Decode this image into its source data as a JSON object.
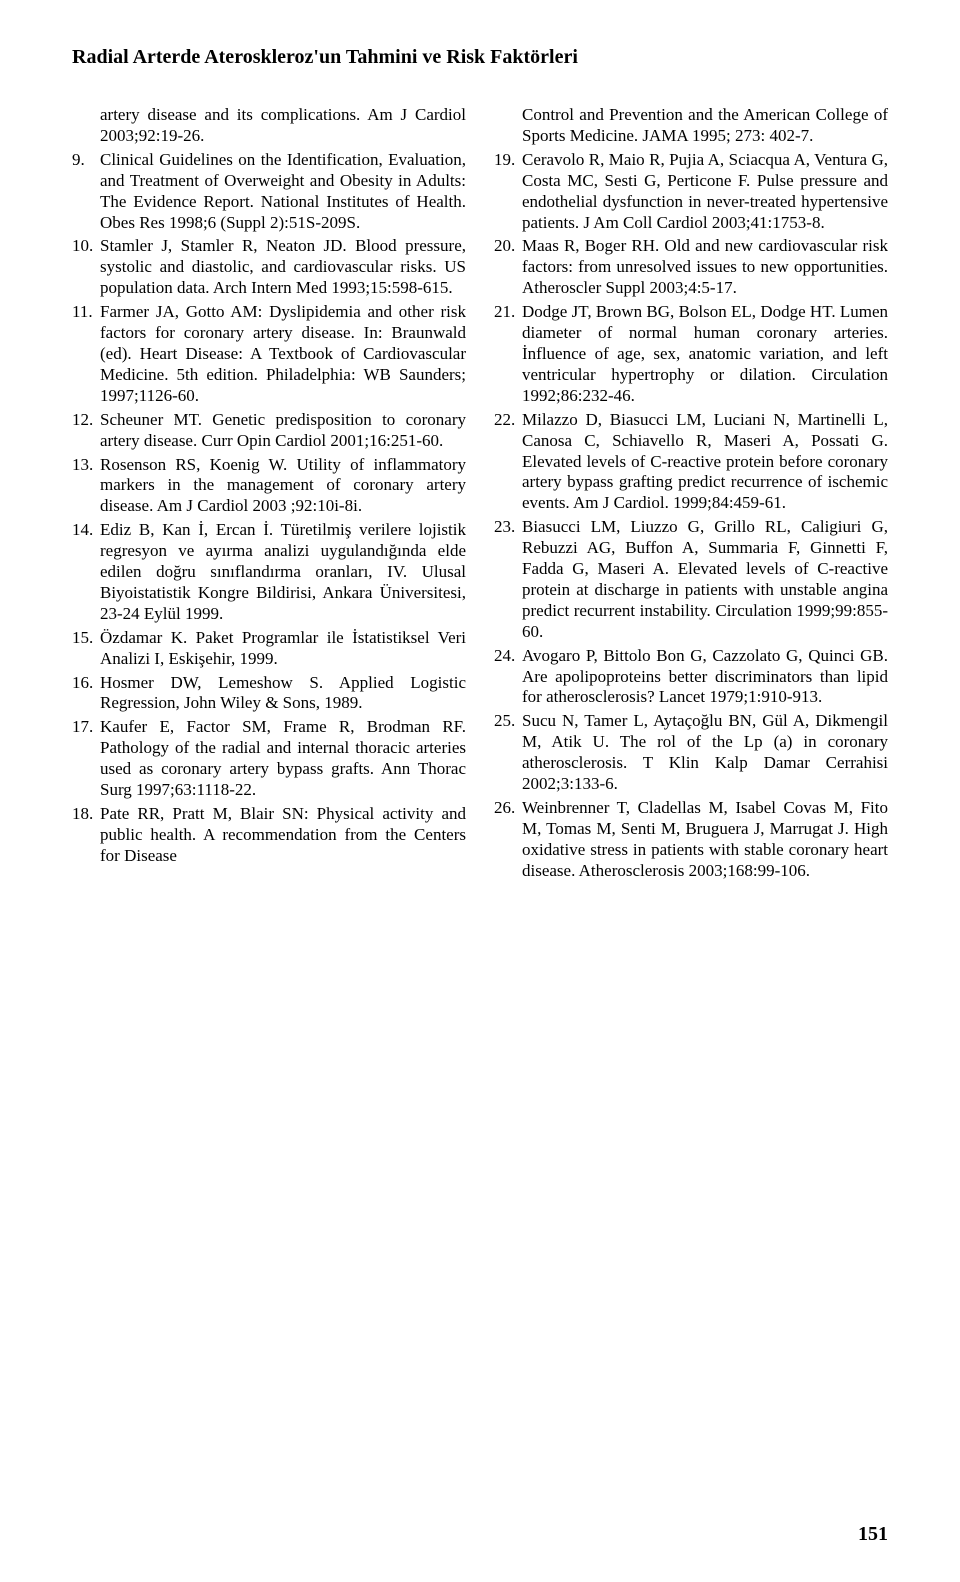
{
  "title": "Radial Arterde Ateroskleroz'un Tahmini ve Risk Faktörleri",
  "leftCol": {
    "cont1": "artery disease and its complications. Am J Cardiol 2003;92:19-26.",
    "r9": "Clinical Guidelines on the Identification, Evaluation, and Treatment of Overweight and Obesity in Adults: The Evidence Report. National Institutes of Health. Obes Res 1998;6 (Suppl 2):51S-209S.",
    "r10": "Stamler J, Stamler R, Neaton JD. Blood pressure, systolic and diastolic, and cardiovascular risks. US population data. Arch Intern Med 1993;15:598-615.",
    "r11": "Farmer JA, Gotto AM: Dyslipidemia and other risk factors for coronary artery disease. In: Braunwald (ed). Heart Disease: A Textbook of Cardiovascular Medicine. 5th edition. Philadelphia: WB Saunders; 1997;1126-60.",
    "r12": "Scheuner MT. Genetic predisposition to coronary artery disease. Curr Opin Cardiol 2001;16:251-60.",
    "r13": "Rosenson RS, Koenig W. Utility of inflammatory markers in the management of coronary artery disease. Am J Cardiol 2003 ;92:10i-8i.",
    "r14": "Ediz B, Kan İ, Ercan İ. Türetilmiş verilere lojistik regresyon ve ayırma analizi uygulandığında elde edilen doğru sınıflandırma oranları, IV. Ulusal Biyoistatistik Kongre Bildirisi, Ankara Üniversitesi, 23-24 Eylül 1999.",
    "r15": "Özdamar K. Paket Programlar ile İstatistiksel Veri Analizi I, Eskişehir, 1999.",
    "r16": "Hosmer DW, Lemeshow S. Applied Logistic Regression, John Wiley & Sons, 1989.",
    "r17": "Kaufer E, Factor SM, Frame R, Brodman RF. Pathology of the radial and internal thoracic arteries used as coronary artery bypass grafts. Ann Thorac Surg 1997;63:1118-22.",
    "r18": "Pate RR, Pratt M, Blair SN: Physical activity and public health. A recommendation from the Centers for Disease"
  },
  "rightCol": {
    "cont2": "Control and Prevention and the American College of Sports Medicine. JAMA 1995; 273: 402-7.",
    "r19": "Ceravolo R, Maio R, Pujia A, Sciacqua A, Ventura G, Costa MC, Sesti G, Perticone F. Pulse pressure and endothelial dysfunction in never-treated hypertensive patients. J Am Coll Cardiol 2003;41:1753-8.",
    "r20": "Maas R, Boger RH. Old and new cardiovascular risk factors: from unresolved issues to new opportunities. Atheroscler Suppl 2003;4:5-17.",
    "r21": "Dodge JT, Brown BG, Bolson EL, Dodge HT. Lumen diameter of normal human coronary arteries. İnfluence of age, sex, anatomic variation, and left ventricular hypertrophy or dilation. Circulation 1992;86:232-46.",
    "r22": "Milazzo D, Biasucci LM, Luciani N, Martinelli L, Canosa C, Schiavello R, Maseri A, Possati G. Elevated levels of C-reactive protein before coronary artery bypass grafting predict recurrence of ischemic events. Am J Cardiol. 1999;84:459-61.",
    "r23": "Biasucci LM, Liuzzo G, Grillo RL, Caligiuri G, Rebuzzi AG, Buffon A, Summaria F, Ginnetti F, Fadda G, Maseri A. Elevated levels of C-reactive protein at discharge in patients with unstable angina predict recurrent instability. Circulation 1999;99:855-60.",
    "r24": "Avogaro P, Bittolo Bon G, Cazzolato G, Quinci GB. Are apolipoproteins better discriminators than lipid for atherosclerosis? Lancet 1979;1:910-913.",
    "r25": "Sucu N, Tamer L, Aytaçoğlu BN, Gül A, Dikmengil M, Atik U. The rol of the Lp (a) in coronary atherosclerosis. T Klin Kalp Damar Cerrahisi 2002;3:133-6.",
    "r26": "Weinbrenner T, Cladellas M, Isabel Covas M, Fito M, Tomas M, Senti M, Bruguera J, Marrugat J. High oxidative stress in patients with stable coronary heart disease. Atherosclerosis 2003;168:99-106."
  },
  "pageNumber": "151"
}
